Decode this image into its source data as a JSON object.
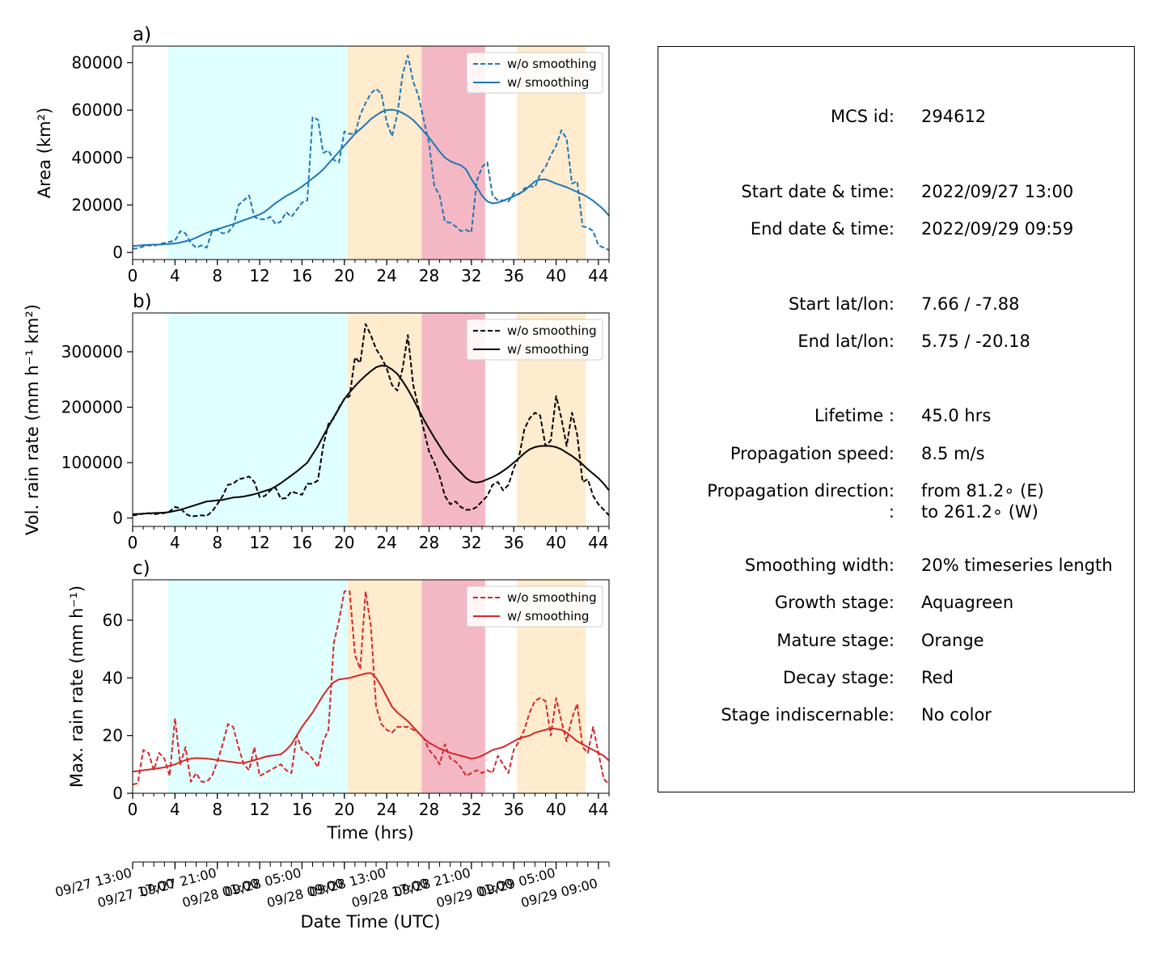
{
  "figure": {
    "xlabel_time": "Time (hrs)",
    "xlabel_datetime": "Date Time (UTC)",
    "datetime_ticks": [
      "09/27 13:00",
      "09/27 17:00",
      "09/27 21:00",
      "09/28 01:00",
      "09/28 05:00",
      "09/28 09:00",
      "09/28 13:00",
      "09/28 17:00",
      "09/28 21:00",
      "09/29 01:00",
      "09/29 05:00",
      "09/29 09:00"
    ],
    "hour_ticks": [
      "0",
      "4",
      "8",
      "12",
      "16",
      "20",
      "24",
      "28",
      "32",
      "36",
      "40",
      "44"
    ],
    "stage_colors": {
      "growth": "#e0ffff",
      "mature": "#ffebcd",
      "decay": "#f4b8c4"
    },
    "stage_spans": [
      {
        "stage": "growth",
        "from": 3.3,
        "to": 20.3
      },
      {
        "stage": "mature",
        "from": 20.3,
        "to": 27.3
      },
      {
        "stage": "decay",
        "from": 27.3,
        "to": 33.3
      },
      {
        "stage": "mature",
        "from": 36.3,
        "to": 42.8
      }
    ]
  },
  "info": {
    "rows": [
      {
        "label": "MCS id:",
        "value": "294612"
      },
      {
        "label": "Start date & time:",
        "value": "2022/09/27 13:00"
      },
      {
        "label": "End date & time:",
        "value": "2022/09/29 09:59"
      },
      {
        "label": "Start lat/lon:",
        "value": "7.66 / -7.88"
      },
      {
        "label": "End lat/lon:",
        "value": "5.75 / -20.18"
      },
      {
        "label": "Lifetime :",
        "value": "45.0 hrs"
      },
      {
        "label": "Propagation speed:",
        "value": "8.5 m/s"
      },
      {
        "label": "Propagation direction:",
        "value": "from  81.2∘ (E)"
      },
      {
        "label": ":",
        "value": "to   261.2∘ (W)"
      },
      {
        "label": "Smoothing width:",
        "value": "20% timeseries length"
      },
      {
        "label": "Growth stage:",
        "value": "Aquagreen"
      },
      {
        "label": "Mature stage:",
        "value": "Orange"
      },
      {
        "label": "Decay stage:",
        "value": "Red"
      },
      {
        "label": "Stage indiscernable:",
        "value": "No color"
      }
    ]
  },
  "chart_data": [
    {
      "type": "line",
      "panel_label": "a)",
      "ylabel": "Area  (km²)",
      "xlim": [
        0,
        45
      ],
      "ylim": [
        -3000,
        87000
      ],
      "yticks": [
        0,
        20000,
        40000,
        60000,
        80000
      ],
      "ytick_labels": [
        "0",
        "20000",
        "40000",
        "60000",
        "80000"
      ],
      "color": "#1f77b4",
      "legend": [
        "w/o smoothing",
        "w/ smoothing"
      ],
      "legend_loc": "upper right",
      "x": [
        0,
        0.5,
        1,
        1.5,
        2,
        2.5,
        3,
        3.5,
        4,
        4.5,
        5,
        5.5,
        6,
        6.5,
        7,
        7.5,
        8,
        8.5,
        9,
        9.5,
        10,
        10.5,
        11,
        11.5,
        12,
        12.5,
        13,
        13.5,
        14,
        14.5,
        15,
        15.5,
        16,
        16.5,
        17,
        17.5,
        18,
        18.5,
        19,
        19.5,
        20,
        20.5,
        21,
        21.5,
        22,
        22.5,
        23,
        23.5,
        24,
        24.5,
        25,
        25.5,
        26,
        26.5,
        27,
        27.5,
        28,
        28.5,
        29,
        29.5,
        30,
        30.5,
        31,
        31.5,
        32,
        32.5,
        33,
        33.5,
        34,
        34.5,
        35,
        35.5,
        36,
        36.5,
        37,
        37.5,
        38,
        38.5,
        39,
        39.5,
        40,
        40.5,
        41,
        41.5,
        42,
        42.5,
        43,
        43.5,
        44,
        44.5,
        45
      ],
      "series": [
        {
          "name": "w/o smoothing",
          "style": "dashed",
          "values": [
            1500,
            1800,
            2500,
            3000,
            2800,
            3500,
            4000,
            4500,
            5000,
            9000,
            8000,
            4000,
            2000,
            3000,
            2000,
            9000,
            9500,
            8000,
            8500,
            11000,
            20000,
            22000,
            24000,
            15000,
            14000,
            14000,
            15000,
            12000,
            13000,
            17000,
            15000,
            18000,
            21000,
            22000,
            57000,
            56000,
            42000,
            43000,
            39000,
            38000,
            51000,
            50000,
            50000,
            58000,
            63000,
            67000,
            69000,
            67000,
            55000,
            49000,
            58000,
            75000,
            83000,
            72000,
            66000,
            56000,
            46000,
            28000,
            24000,
            13000,
            12500,
            11000,
            9000,
            9500,
            8500,
            30000,
            36000,
            38000,
            24000,
            22000,
            22000,
            21500,
            25000,
            24500,
            27000,
            28000,
            27500,
            33000,
            36000,
            41000,
            45000,
            51500,
            48000,
            29000,
            30000,
            11000,
            10500,
            9000,
            3000,
            2000,
            1000
          ]
        },
        {
          "name": "w/ smoothing",
          "style": "solid",
          "values": [
            2700,
            2900,
            3100,
            3200,
            3300,
            3300,
            3500,
            3600,
            3800,
            4200,
            4700,
            5300,
            6200,
            7300,
            8300,
            9100,
            9800,
            10500,
            11200,
            11900,
            12800,
            13600,
            14400,
            15200,
            16000,
            17200,
            19000,
            20800,
            22300,
            23800,
            25000,
            26300,
            27800,
            29500,
            31300,
            33000,
            35000,
            37500,
            40000,
            42500,
            45000,
            47500,
            50000,
            52000,
            54000,
            56200,
            57800,
            59200,
            60000,
            60200,
            59800,
            58800,
            57500,
            55800,
            53500,
            51000,
            48500,
            45500,
            42500,
            40000,
            38500,
            37500,
            36800,
            35000,
            31000,
            27500,
            24000,
            21500,
            20700,
            21000,
            21800,
            22700,
            23700,
            24800,
            26000,
            28000,
            30000,
            30700,
            30800,
            30000,
            29000,
            28300,
            27500,
            26500,
            25500,
            24500,
            23300,
            21800,
            20000,
            18000,
            15500
          ]
        }
      ]
    },
    {
      "type": "line",
      "panel_label": "b)",
      "ylabel": "Vol. rain rate (mm h⁻¹ km²)",
      "xlim": [
        0,
        45
      ],
      "ylim": [
        -15000,
        370000
      ],
      "yticks": [
        0,
        100000,
        200000,
        300000
      ],
      "ytick_labels": [
        "0",
        "100000",
        "200000",
        "300000"
      ],
      "color": "#000000",
      "legend": [
        "w/o smoothing",
        "w/ smoothing"
      ],
      "legend_loc": "upper right",
      "x": [
        0,
        0.5,
        1,
        1.5,
        2,
        2.5,
        3,
        3.5,
        4,
        4.5,
        5,
        5.5,
        6,
        6.5,
        7,
        7.5,
        8,
        8.5,
        9,
        9.5,
        10,
        10.5,
        11,
        11.5,
        12,
        12.5,
        13,
        13.5,
        14,
        14.5,
        15,
        15.5,
        16,
        16.5,
        17,
        17.5,
        18,
        18.5,
        19,
        19.5,
        20,
        20.5,
        21,
        21.5,
        22,
        22.5,
        23,
        23.5,
        24,
        24.5,
        25,
        25.5,
        26,
        26.5,
        27,
        27.5,
        28,
        28.5,
        29,
        29.5,
        30,
        30.5,
        31,
        31.5,
        32,
        32.5,
        33,
        33.5,
        34,
        34.5,
        35,
        35.5,
        36,
        36.5,
        37,
        37.5,
        38,
        38.5,
        39,
        39.5,
        40,
        40.5,
        41,
        41.5,
        42,
        42.5,
        43,
        43.5,
        44,
        44.5,
        45
      ],
      "series": [
        {
          "name": "w/o smoothing",
          "style": "dashed",
          "values": [
            5000,
            6000,
            8000,
            9000,
            7000,
            8000,
            9000,
            12000,
            20000,
            18000,
            8000,
            3000,
            4000,
            5000,
            4000,
            12000,
            25000,
            40000,
            60000,
            62000,
            70000,
            72000,
            75000,
            65000,
            38000,
            40000,
            50000,
            55000,
            35000,
            36000,
            48000,
            45000,
            42000,
            62000,
            62000,
            68000,
            130000,
            170000,
            180000,
            200000,
            215000,
            220000,
            290000,
            280000,
            350000,
            330000,
            305000,
            290000,
            270000,
            240000,
            230000,
            270000,
            330000,
            240000,
            200000,
            160000,
            120000,
            100000,
            75000,
            40000,
            25000,
            30000,
            20000,
            15000,
            15000,
            20000,
            30000,
            40000,
            60000,
            65000,
            50000,
            60000,
            90000,
            110000,
            160000,
            180000,
            190000,
            185000,
            130000,
            140000,
            220000,
            180000,
            130000,
            190000,
            150000,
            65000,
            70000,
            40000,
            25000,
            15000,
            5000
          ]
        },
        {
          "name": "w/ smoothing",
          "style": "solid",
          "values": [
            7000,
            7500,
            8000,
            8500,
            9000,
            9500,
            10000,
            11000,
            13000,
            15000,
            18000,
            21000,
            24000,
            27000,
            30000,
            31000,
            32000,
            33000,
            35000,
            37000,
            38000,
            39000,
            41000,
            43000,
            46000,
            49000,
            52000,
            57000,
            63000,
            70000,
            77000,
            84000,
            92000,
            100000,
            115000,
            130000,
            148000,
            165000,
            182000,
            198000,
            215000,
            227000,
            238000,
            248000,
            257000,
            265000,
            272000,
            275000,
            274000,
            268000,
            260000,
            247000,
            232000,
            215000,
            196000,
            178000,
            161000,
            145000,
            130000,
            115000,
            103000,
            92000,
            82000,
            72000,
            66000,
            64000,
            66000,
            70000,
            74000,
            79000,
            85000,
            92000,
            100000,
            108000,
            117000,
            124000,
            128000,
            130000,
            130500,
            130000,
            128000,
            124000,
            118000,
            112000,
            105000,
            97000,
            88000,
            80000,
            72000,
            62000,
            50000
          ]
        }
      ]
    },
    {
      "type": "line",
      "panel_label": "c)",
      "ylabel": "Max. rain rate  (mm h⁻¹)",
      "xlim": [
        0,
        45
      ],
      "ylim": [
        0,
        74
      ],
      "yticks": [
        0,
        20,
        40,
        60
      ],
      "ytick_labels": [
        "0",
        "20",
        "40",
        "60"
      ],
      "color": "#d62728",
      "legend": [
        "w/o smoothing",
        "w/ smoothing"
      ],
      "legend_loc": "upper right",
      "x": [
        0,
        0.5,
        1,
        1.5,
        2,
        2.5,
        3,
        3.5,
        4,
        4.5,
        5,
        5.5,
        6,
        6.5,
        7,
        7.5,
        8,
        8.5,
        9,
        9.5,
        10,
        10.5,
        11,
        11.5,
        12,
        12.5,
        13,
        13.5,
        14,
        14.5,
        15,
        15.5,
        16,
        16.5,
        17,
        17.5,
        18,
        18.5,
        19,
        19.5,
        20,
        20.5,
        21,
        21.5,
        22,
        22.5,
        23,
        23.5,
        24,
        24.5,
        25,
        25.5,
        26,
        26.5,
        27,
        27.5,
        28,
        28.5,
        29,
        29.5,
        30,
        30.5,
        31,
        31.5,
        32,
        32.5,
        33,
        33.5,
        34,
        34.5,
        35,
        35.5,
        36,
        36.5,
        37,
        37.5,
        38,
        38.5,
        39,
        39.5,
        40,
        40.5,
        41,
        41.5,
        42,
        42.5,
        43,
        43.5,
        44,
        44.5,
        45
      ],
      "series": [
        {
          "name": "w/o smoothing",
          "style": "dashed",
          "values": [
            3,
            3.5,
            15,
            14,
            8,
            14,
            12,
            6,
            26,
            10,
            16,
            4,
            7,
            4,
            4,
            6,
            11,
            17,
            24,
            23,
            16,
            10,
            8,
            16,
            6,
            7,
            8,
            9,
            10,
            8,
            7,
            20,
            15,
            14,
            12,
            9,
            18,
            22,
            52,
            60,
            70,
            70,
            48,
            43,
            70,
            58,
            30,
            24,
            22,
            21,
            23,
            23,
            23,
            22,
            21,
            19,
            15,
            13,
            10,
            17,
            12,
            11,
            9,
            6,
            7,
            8,
            7,
            8,
            7,
            13,
            10,
            7,
            15,
            18,
            22,
            28,
            32,
            33,
            32,
            20,
            33,
            25,
            18,
            26,
            31,
            16,
            14,
            23,
            14,
            5,
            3
          ]
        },
        {
          "name": "w/ smoothing",
          "style": "solid",
          "values": [
            7.5,
            7.7,
            8,
            8.2,
            8.5,
            8.7,
            9,
            9.5,
            10,
            10.8,
            11.5,
            12,
            12.2,
            12.1,
            12,
            11.8,
            11.5,
            11.3,
            11,
            10.8,
            10.5,
            10.5,
            11,
            11.5,
            12,
            12.6,
            13,
            13.2,
            13.5,
            15,
            17,
            20,
            23,
            25.5,
            28,
            31,
            34,
            36.5,
            38.5,
            39.5,
            39.7,
            40,
            40.5,
            41,
            41.5,
            41.7,
            40,
            37,
            33.5,
            30,
            28,
            26.5,
            25,
            23,
            21,
            19,
            17.5,
            16.5,
            15.5,
            14.8,
            14,
            13.5,
            13,
            12.5,
            12,
            12.3,
            13,
            14,
            15,
            15.5,
            16,
            17,
            18,
            19,
            19.5,
            20,
            21,
            21.5,
            22,
            22.5,
            22.3,
            22,
            21,
            19.5,
            18,
            17,
            16,
            15,
            14,
            13,
            11.3
          ]
        }
      ]
    }
  ]
}
